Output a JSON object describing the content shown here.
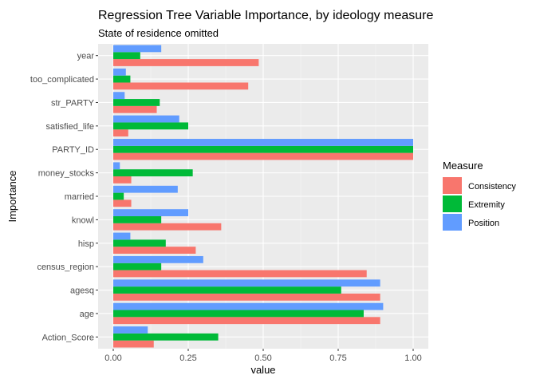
{
  "chart_data": {
    "type": "bar",
    "orientation": "horizontal",
    "title": "Regression Tree Variable Importance, by ideology measure",
    "subtitle": "State of residence omitted",
    "xlabel": "value",
    "ylabel": "Importance",
    "xlim": [
      0,
      1.0
    ],
    "xticks": [
      "0.00",
      "0.25",
      "0.50",
      "0.75",
      "1.00"
    ],
    "xtick_values": [
      0,
      0.25,
      0.5,
      0.75,
      1.0
    ],
    "grid": true,
    "legend_title": "Measure",
    "legend_position": "right",
    "categories": [
      "Action_Score",
      "age",
      "agesq",
      "census_region",
      "hisp",
      "knowl",
      "married",
      "money_stocks",
      "PARTY_ID",
      "satisfied_life",
      "str_PARTY",
      "too_complicated",
      "year"
    ],
    "series": [
      {
        "name": "Consistency",
        "color": "#F8766D",
        "values": [
          0.135,
          0.89,
          0.89,
          0.845,
          0.275,
          0.36,
          0.06,
          0.06,
          1.0,
          0.05,
          0.145,
          0.45,
          0.485
        ]
      },
      {
        "name": "Extremity",
        "color": "#00BA38",
        "values": [
          0.35,
          0.835,
          0.76,
          0.16,
          0.175,
          0.16,
          0.035,
          0.265,
          1.0,
          0.25,
          0.155,
          0.057,
          0.09
        ]
      },
      {
        "name": "Position",
        "color": "#619CFF",
        "values": [
          0.115,
          0.9,
          0.89,
          0.3,
          0.057,
          0.25,
          0.215,
          0.022,
          1.0,
          0.22,
          0.038,
          0.042,
          0.16
        ]
      }
    ]
  }
}
